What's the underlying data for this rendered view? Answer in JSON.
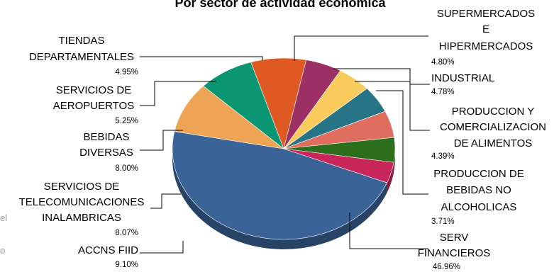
{
  "chart_data": {
    "type": "pie",
    "title": "Por sector de actividad económica",
    "slices": [
      {
        "name": "SERV FINANCIEROS",
        "lines": [
          "SERV",
          "FINANCIEROS"
        ],
        "value": 46.96,
        "pct_label": "46.96%",
        "color": "#3a6498"
      },
      {
        "name": "ACCNS FIID",
        "lines": [
          "ACCNS FIID"
        ],
        "value": 9.1,
        "pct_label": "9.10%",
        "color": "#efa455"
      },
      {
        "name": "SERVICIOS DE TELECOMUNICACIONES INALAMBRICAS",
        "lines": [
          "SERVICIOS DE",
          "TELECOMUNICACIONES",
          "INALAMBRICAS"
        ],
        "value": 8.07,
        "pct_label": "8.07%",
        "color": "#0a9673"
      },
      {
        "name": "BEBIDAS DIVERSAS",
        "lines": [
          "BEBIDAS",
          "DIVERSAS"
        ],
        "value": 8.0,
        "pct_label": "8.00%",
        "color": "#df5a22"
      },
      {
        "name": "SERVICIOS DE AEROPUERTOS",
        "lines": [
          "SERVICIOS DE",
          "AEROPUERTOS"
        ],
        "value": 5.25,
        "pct_label": "5.25%",
        "color": "#9c2f63"
      },
      {
        "name": "TIENDAS DEPARTAMENTALES",
        "lines": [
          "TIENDAS",
          "DEPARTAMENTALES"
        ],
        "value": 4.95,
        "pct_label": "4.95%",
        "color": "#f9cb5c"
      },
      {
        "name": "SUPERMERCADOS E HIPERMERCADOS",
        "lines": [
          "SUPERMERCADOS",
          "E",
          "HIPERMERCADOS"
        ],
        "value": 4.8,
        "pct_label": "4.80%",
        "color": "#277487"
      },
      {
        "name": "INDUSTRIAL",
        "lines": [
          "INDUSTRIAL"
        ],
        "value": 4.78,
        "pct_label": "4.78%",
        "color": "#df6e5f"
      },
      {
        "name": "PRODUCCION Y COMERCIALIZACION DE ALIMENTOS",
        "lines": [
          "PRODUCCION Y",
          "COMERCIALIZACION",
          "DE ALIMENTOS"
        ],
        "value": 4.39,
        "pct_label": "4.39%",
        "color": "#2c6e1b"
      },
      {
        "name": "PRODUCCION DE BEBIDAS NO ALCOHOLICAS",
        "lines": [
          "PRODUCCION DE",
          "BEBIDAS NO",
          "ALCOHOLICAS"
        ],
        "value": 3.71,
        "pct_label": "3.71%",
        "color": "#c8265b"
      }
    ]
  },
  "edge_fragments": [
    "el",
    "o"
  ]
}
